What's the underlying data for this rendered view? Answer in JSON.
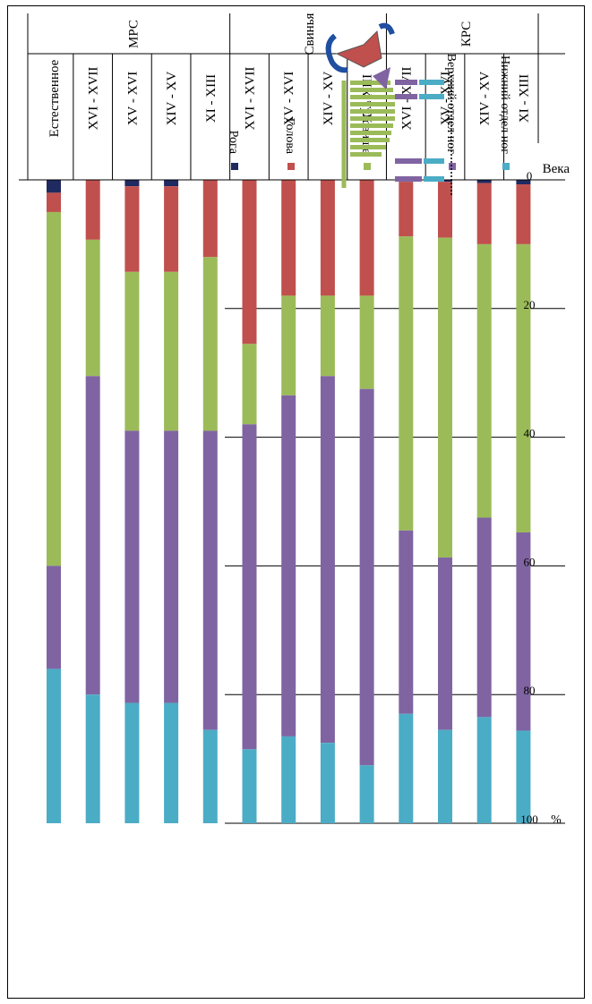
{
  "chart_data": {
    "type": "bar",
    "stacked": true,
    "orientation": "horizontal",
    "title": "",
    "xlabel": "%",
    "ylabel": "Века",
    "xlim": [
      0,
      100
    ],
    "x_ticks": [
      0,
      20,
      40,
      60,
      80,
      100
    ],
    "grid": true,
    "groups": [
      {
        "name": "МРС",
        "categories": [
          "Естественное",
          "XVI - XVII",
          "XV - XVI",
          "XIV - XV",
          "XI - XIII"
        ]
      },
      {
        "name": "Свинья",
        "categories": [
          "XVI - XVII",
          "XV - XVI",
          "XIV - XV",
          "XI - XIII"
        ]
      },
      {
        "name": "КРС",
        "categories": [
          "XVI - XVII",
          "XV - XVI",
          "XIV - XV",
          "XI - XIII"
        ]
      }
    ],
    "categories": [
      "Естественное",
      "XVI - XVII",
      "XV - XVI",
      "XIV - XV",
      "XI - XIII",
      "XVI - XVII",
      "XV - XVI",
      "XIV - XV",
      "XI - XIII",
      "XVI - XVII",
      "XV - XVI",
      "XIV - XV",
      "XI - XIII"
    ],
    "series": [
      {
        "name": "Рога",
        "color": "#1f2a60",
        "values": [
          2,
          0,
          1,
          1,
          0,
          0,
          0,
          0,
          0,
          0.3,
          0.3,
          0.5,
          0.7
        ]
      },
      {
        "name": "Голова",
        "color": "#c0504d",
        "values": [
          3,
          9.3,
          13.3,
          13.3,
          12,
          25.5,
          18,
          18,
          18,
          8.5,
          8.7,
          9.5,
          9.3
        ]
      },
      {
        "name": "Туловище",
        "color": "#9bbb59",
        "values": [
          55,
          21.2,
          24.7,
          24.7,
          27,
          12.5,
          15.5,
          12.5,
          14.5,
          45.7,
          49.7,
          42.5,
          44.8
        ]
      },
      {
        "name": "Верхний отдел ног",
        "color": "#8064a2",
        "values": [
          16,
          49.5,
          42.3,
          42.3,
          46.5,
          50.5,
          53,
          57,
          58.5,
          28.5,
          26.8,
          31,
          30.8
        ]
      },
      {
        "name": "Нижний отдел ног",
        "color": "#4bacc6",
        "values": [
          24,
          20,
          18.7,
          18.7,
          14.5,
          11.5,
          13.5,
          12.5,
          9,
          17,
          14.5,
          16.5,
          14.4
        ]
      }
    ]
  }
}
